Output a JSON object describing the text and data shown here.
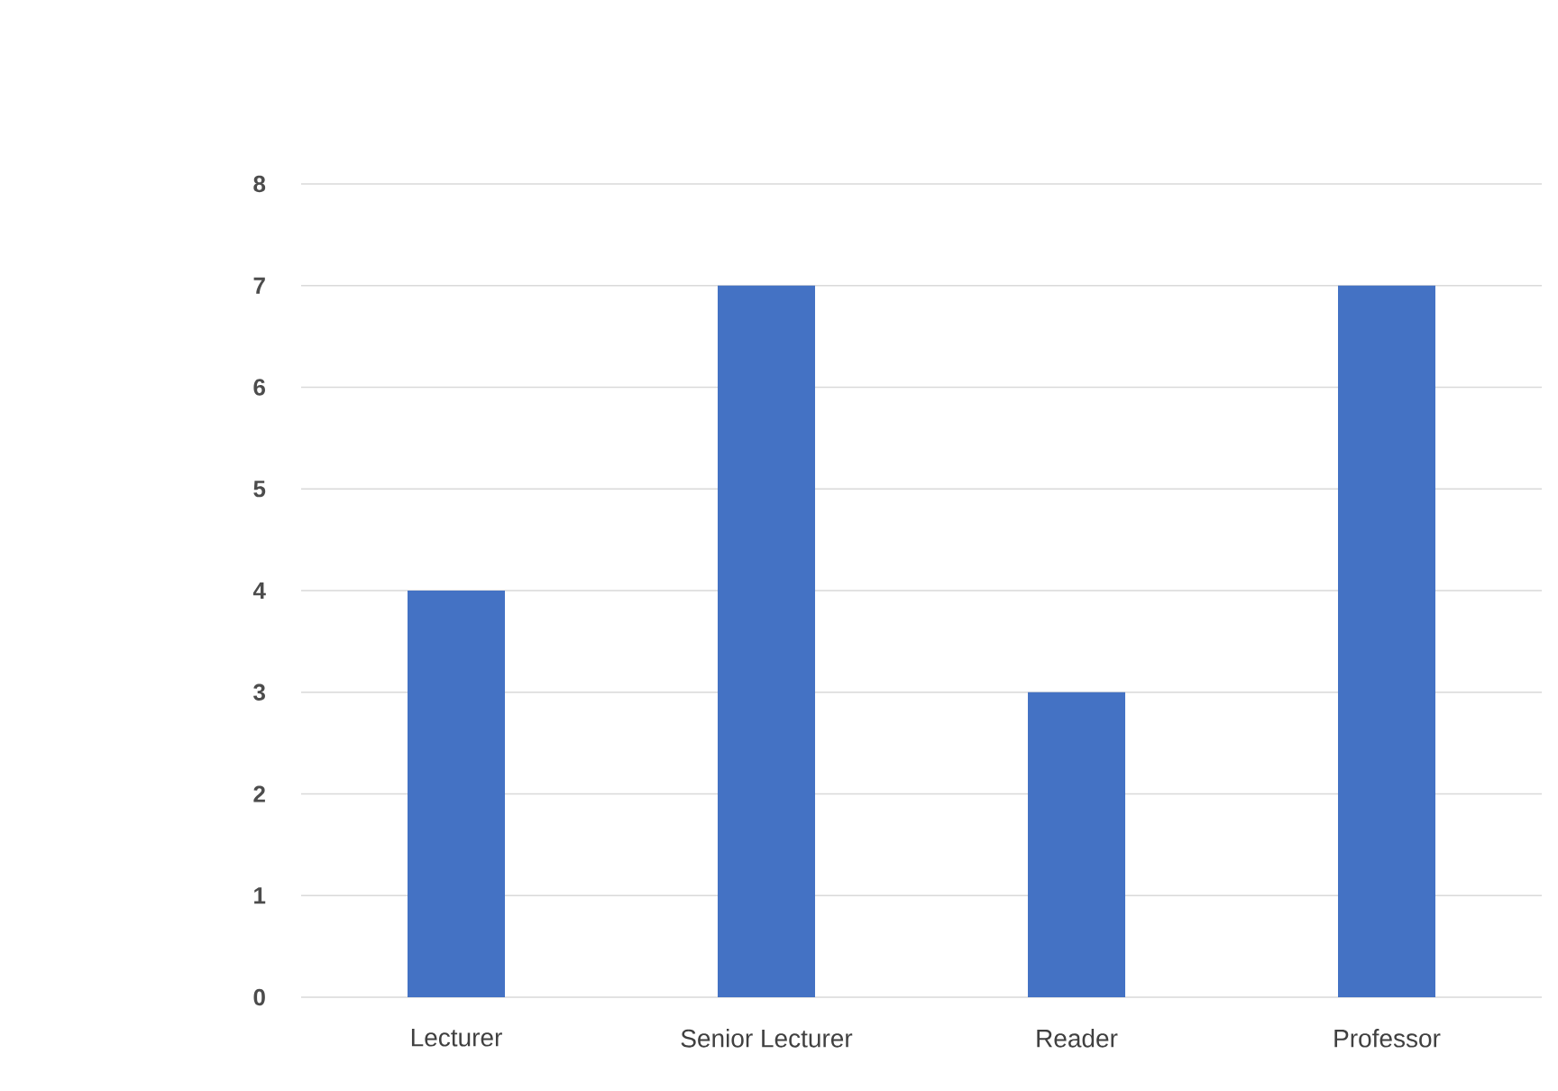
{
  "chart_data": {
    "type": "bar",
    "categories": [
      "Lecturer",
      "Senior Lecturer",
      "Reader",
      "Professor"
    ],
    "values": [
      4,
      7,
      3,
      7
    ],
    "color": "#4472c4",
    "ylim": [
      0,
      8
    ],
    "yticks": [
      0,
      1,
      2,
      3,
      4,
      5,
      6,
      7,
      8
    ],
    "grid": "y"
  }
}
